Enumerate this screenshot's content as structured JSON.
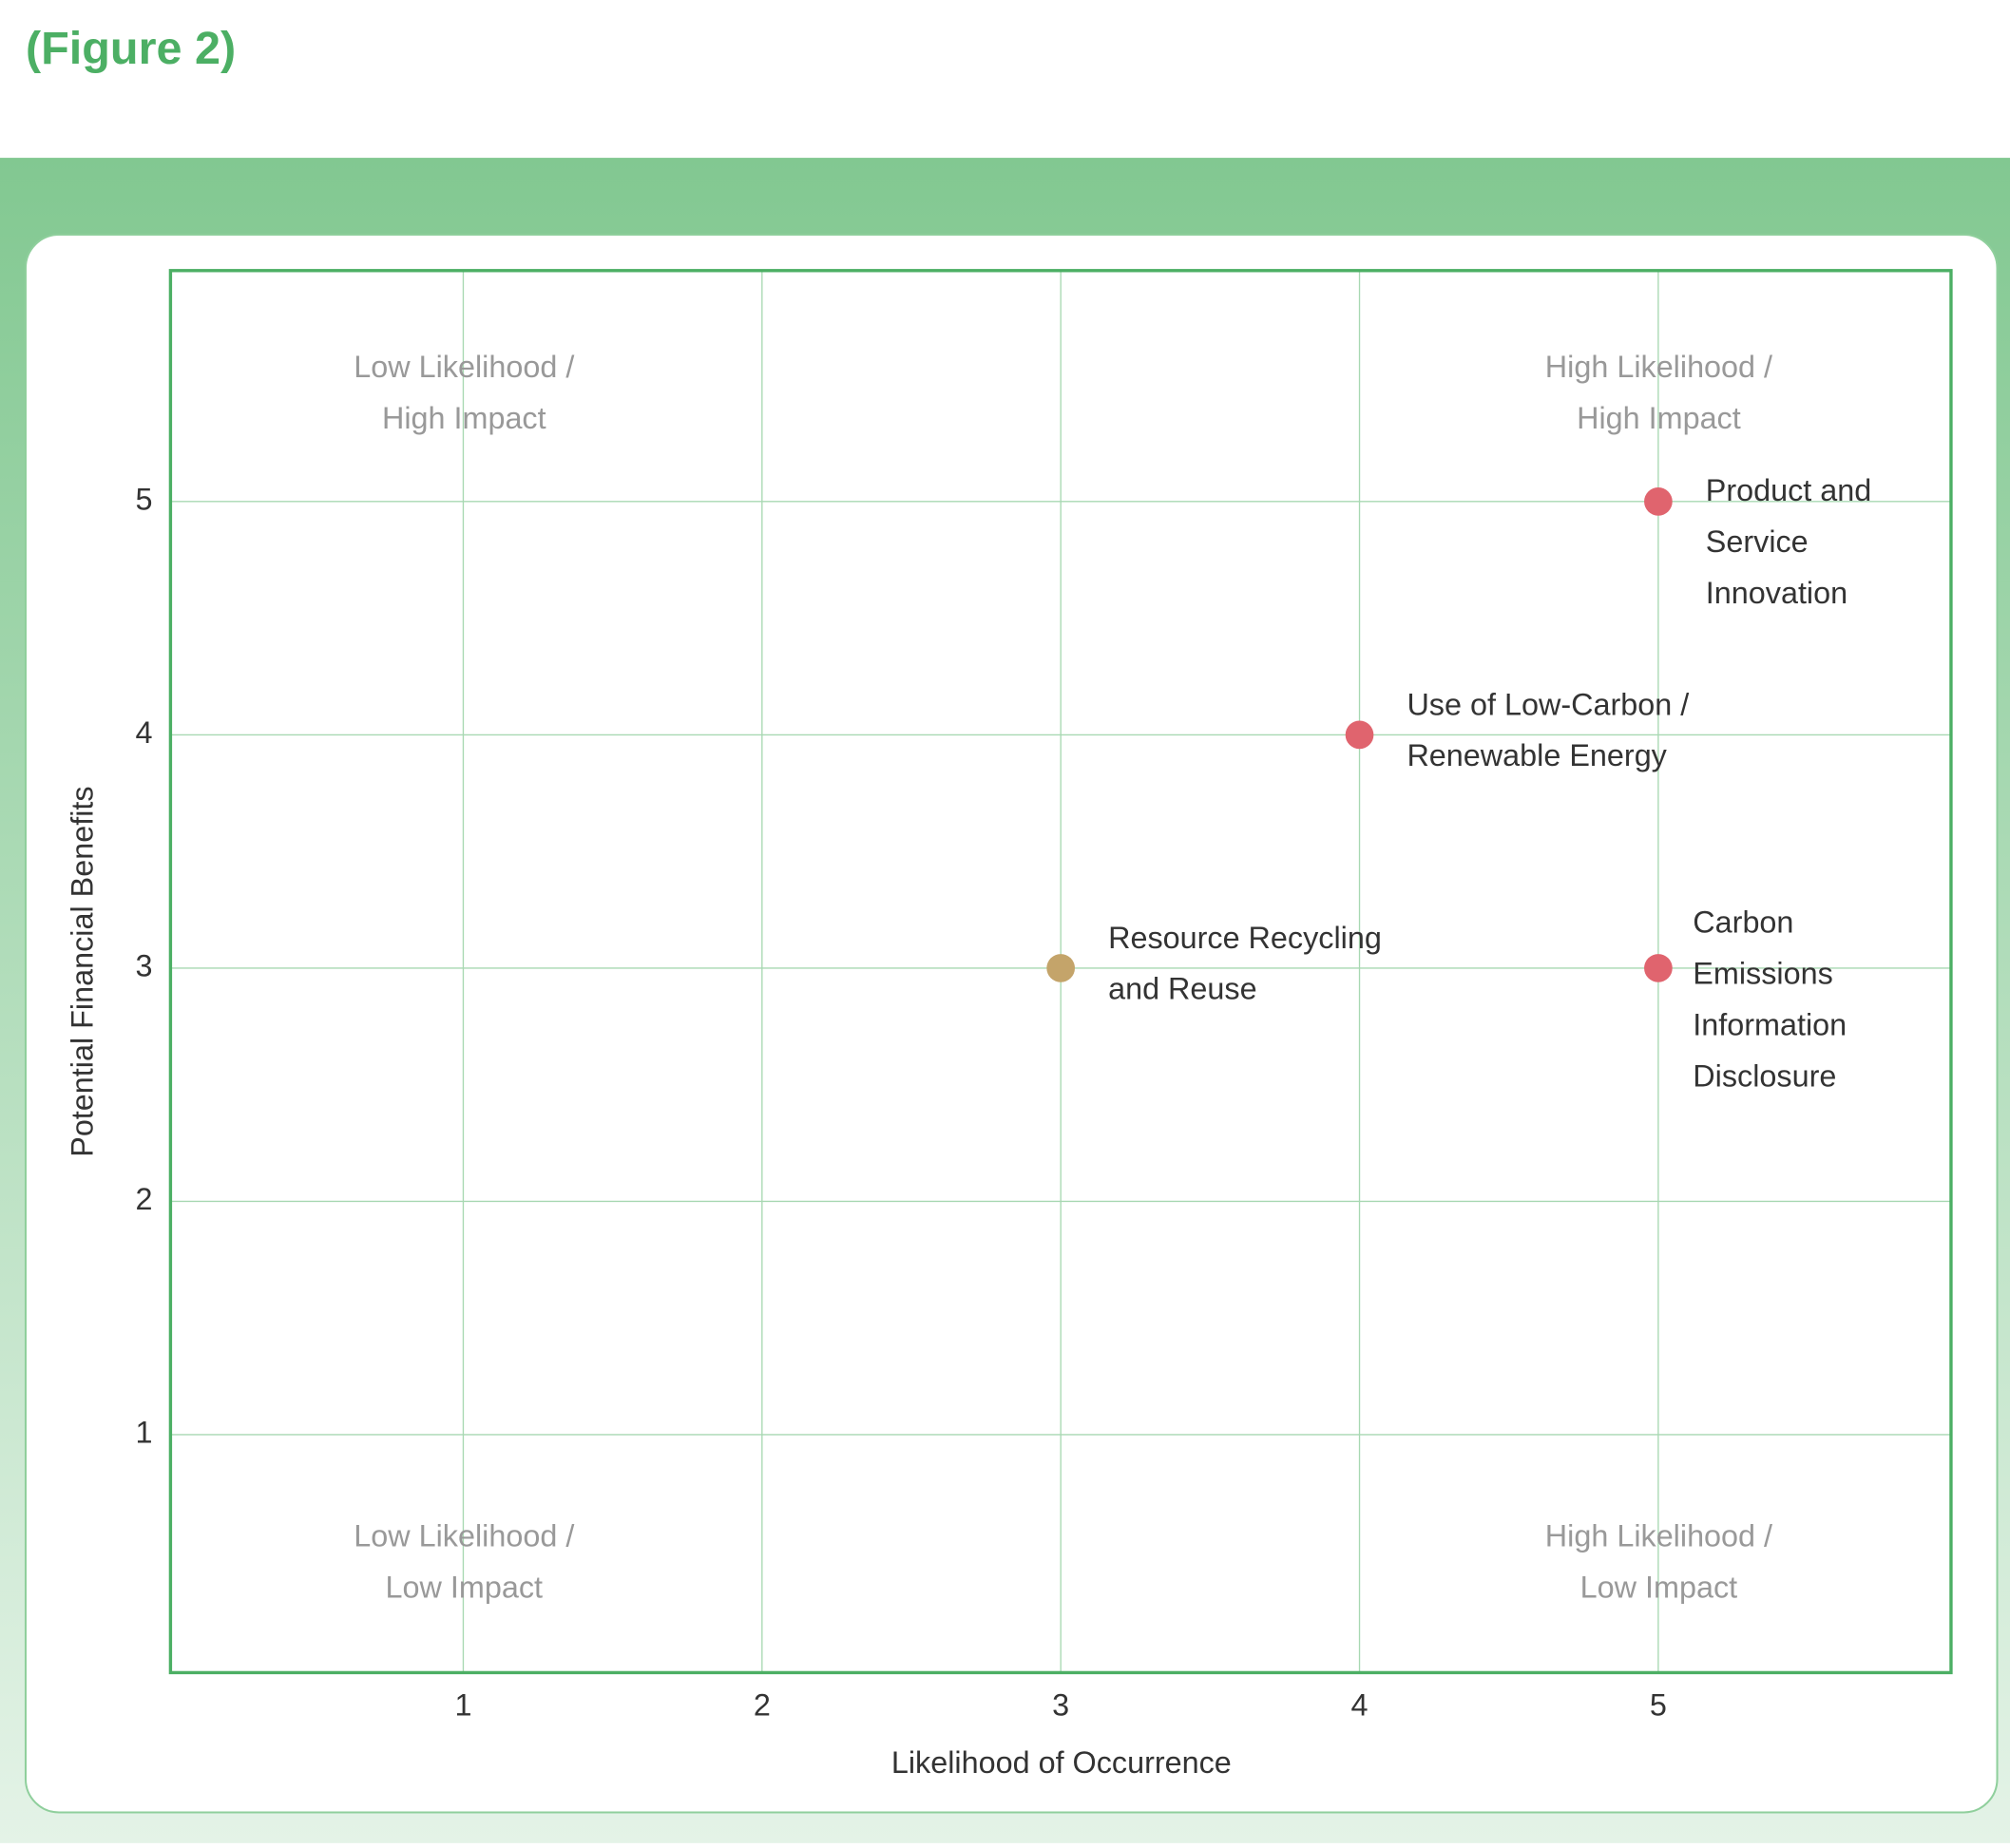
{
  "title": "(Figure 2)",
  "chart_data": {
    "type": "scatter",
    "x_label": "Likelihood of Occurrence",
    "y_label": "Potential Financial Benefits",
    "xlim": [
      0.02,
      5.98
    ],
    "ylim": [
      -0.02,
      5.99
    ],
    "xticks": [
      1,
      2,
      3,
      4,
      5
    ],
    "yticks": [
      1,
      2,
      3,
      4,
      5
    ],
    "grid": true,
    "annotations": [
      [
        "Low Likelihood /",
        "High Impact"
      ],
      [
        "High Likelihood /",
        "High Impact"
      ],
      [
        "Low Likelihood /",
        "Low Impact"
      ],
      [
        "High Likelihood /",
        "Low Impact"
      ]
    ],
    "points": [
      {
        "label": [
          "Product and",
          "Service",
          "Innovation"
        ],
        "x": 5,
        "y": 5,
        "color": "#e0646e"
      },
      {
        "label": [
          "Use of Low-Carbon /",
          "Renewable Energy"
        ],
        "x": 4,
        "y": 4,
        "color": "#e0646e"
      },
      {
        "label": [
          "Resource Recycling",
          "and Reuse"
        ],
        "x": 3,
        "y": 3,
        "color": "#c4a46a"
      },
      {
        "label": [
          "Carbon",
          "Emissions",
          "Information",
          "Disclosure"
        ],
        "x": 5,
        "y": 3,
        "color": "#e0646e"
      }
    ]
  }
}
